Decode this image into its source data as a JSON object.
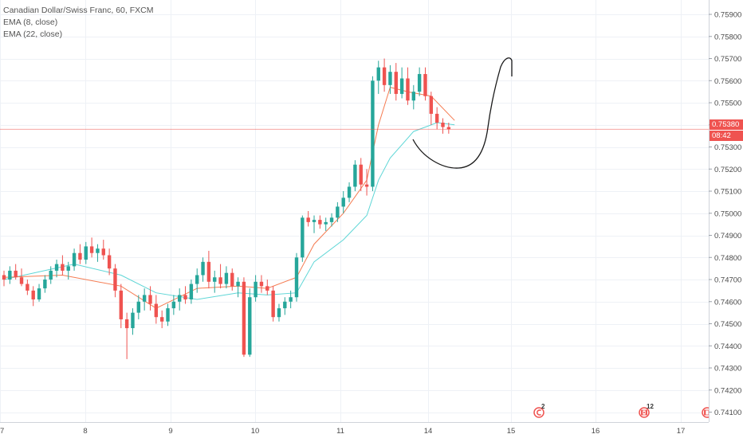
{
  "legend": {
    "symbol": "Canadian Dollar/Swiss Franc, 60, FXCM",
    "ema8": "EMA (8, close)",
    "ema22": "EMA (22, close)"
  },
  "price_tags": {
    "last_price": "0.75380",
    "countdown": "08:42"
  },
  "events": [
    {
      "label": "2",
      "icon": "news-event-icon"
    },
    {
      "label": "12",
      "icon": "canada-flag-event-icon"
    },
    {
      "label": "",
      "icon": "canada-flag-event-icon"
    }
  ],
  "colors": {
    "up": "#26a69a",
    "down": "#ef5350",
    "ema8": "#f57c52",
    "ema22": "#5ed6d6",
    "price_line": "#ef5350",
    "grid": "#eef1f6",
    "drawing": "#1a1a1a"
  },
  "chart_data": {
    "type": "candlestick",
    "title": "Canadian Dollar/Swiss Franc, 60, FXCM",
    "x_ticks": [
      "7",
      "8",
      "9",
      "10",
      "11",
      "14",
      "15",
      "16",
      "17"
    ],
    "y_ticks": [
      0.759,
      0.758,
      0.757,
      0.756,
      0.755,
      0.754,
      0.753,
      0.752,
      0.751,
      0.75,
      0.749,
      0.748,
      0.747,
      0.746,
      0.745,
      0.744,
      0.743,
      0.742,
      0.741
    ],
    "y_tick_labels": [
      "0.75900",
      "0.75800",
      "0.75700",
      "0.75600",
      "0.75500",
      "0.75400",
      "0.75300",
      "0.75200",
      "0.75100",
      "0.75000",
      "0.74900",
      "0.74800",
      "0.74700",
      "0.74600",
      "0.74500",
      "0.74400",
      "0.74300",
      "0.74200",
      "0.74100"
    ],
    "ylim": [
      0.74055,
      0.75965
    ],
    "last_price": 0.7538,
    "candles_by_period": [
      [
        0.7472,
        0.7474,
        0.7467,
        0.747
      ],
      [
        0.747,
        0.7476,
        0.7468,
        0.7474
      ],
      [
        0.7474,
        0.7477,
        0.747,
        0.7471
      ],
      [
        0.7471,
        0.7475,
        0.7467,
        0.7468
      ],
      [
        0.7468,
        0.747,
        0.7463,
        0.7465
      ],
      [
        0.7465,
        0.7467,
        0.7458,
        0.7461
      ],
      [
        0.7461,
        0.7468,
        0.746,
        0.7466
      ],
      [
        0.7466,
        0.7472,
        0.7464,
        0.747
      ],
      [
        0.747,
        0.7476,
        0.7468,
        0.7474
      ],
      [
        0.7474,
        0.7479,
        0.7471,
        0.7477
      ],
      [
        0.7477,
        0.7481,
        0.7472,
        0.7474
      ],
      [
        0.7474,
        0.7478,
        0.747,
        0.7476
      ],
      [
        0.7476,
        0.7484,
        0.7474,
        0.7482
      ],
      [
        0.7482,
        0.7486,
        0.7477,
        0.7479
      ],
      [
        0.7479,
        0.7487,
        0.7477,
        0.7485
      ],
      [
        0.7485,
        0.7489,
        0.748,
        0.7482
      ],
      [
        0.7482,
        0.7486,
        0.7478,
        0.7484
      ],
      [
        0.7484,
        0.7488,
        0.7479,
        0.7481
      ],
      [
        0.7481,
        0.7484,
        0.7472,
        0.7475
      ],
      [
        0.7475,
        0.7477,
        0.7462,
        0.7465
      ],
      [
        0.7465,
        0.7468,
        0.7448,
        0.7452
      ],
      [
        0.7452,
        0.7455,
        0.7434,
        0.7448
      ],
      [
        0.7448,
        0.7457,
        0.7445,
        0.7455
      ],
      [
        0.7455,
        0.7463,
        0.7452,
        0.746
      ],
      [
        0.746,
        0.7466,
        0.7456,
        0.7463
      ],
      [
        0.7463,
        0.7467,
        0.7456,
        0.7459
      ],
      [
        0.7459,
        0.7463,
        0.745,
        0.7453
      ],
      [
        0.7453,
        0.7456,
        0.7448,
        0.7451
      ],
      [
        0.7451,
        0.7459,
        0.7449,
        0.7457
      ],
      [
        0.7457,
        0.7463,
        0.7454,
        0.746
      ],
      [
        0.746,
        0.7466,
        0.7456,
        0.7463
      ],
      [
        0.7463,
        0.7467,
        0.7459,
        0.7461
      ],
      [
        0.7461,
        0.747,
        0.7459,
        0.7468
      ],
      [
        0.7468,
        0.7475,
        0.7464,
        0.7472
      ],
      [
        0.7472,
        0.748,
        0.7469,
        0.7478
      ],
      [
        0.7478,
        0.7483,
        0.7466,
        0.7469
      ],
      [
        0.7469,
        0.7474,
        0.7464,
        0.7471
      ],
      [
        0.7471,
        0.7477,
        0.7466,
        0.7468
      ],
      [
        0.7468,
        0.7476,
        0.7466,
        0.7473
      ],
      [
        0.7473,
        0.7475,
        0.7465,
        0.7467
      ],
      [
        0.7467,
        0.7471,
        0.7462,
        0.7469
      ],
      [
        0.7469,
        0.7471,
        0.7435,
        0.7436
      ],
      [
        0.7436,
        0.7466,
        0.7435,
        0.7462
      ],
      [
        0.7462,
        0.7472,
        0.746,
        0.7469
      ],
      [
        0.7469,
        0.7472,
        0.7464,
        0.7467
      ],
      [
        0.7467,
        0.747,
        0.7463,
        0.7465
      ],
      [
        0.7465,
        0.7467,
        0.7451,
        0.7453
      ],
      [
        0.7453,
        0.7459,
        0.7451,
        0.7457
      ],
      [
        0.7457,
        0.7462,
        0.7454,
        0.746
      ],
      [
        0.746,
        0.7465,
        0.7457,
        0.7462
      ],
      [
        0.7462,
        0.7482,
        0.746,
        0.748
      ],
      [
        0.748,
        0.7499,
        0.7478,
        0.7498
      ],
      [
        0.7498,
        0.7501,
        0.7494,
        0.7496
      ],
      [
        0.7496,
        0.7499,
        0.7491,
        0.7497
      ],
      [
        0.7497,
        0.7499,
        0.7493,
        0.7495
      ],
      [
        0.7495,
        0.7498,
        0.7492,
        0.7496
      ],
      [
        0.7496,
        0.75,
        0.7494,
        0.7498
      ],
      [
        0.7498,
        0.7505,
        0.7496,
        0.7503
      ],
      [
        0.7503,
        0.751,
        0.75,
        0.7507
      ],
      [
        0.7507,
        0.7514,
        0.7505,
        0.7512
      ],
      [
        0.7512,
        0.7524,
        0.751,
        0.7522
      ],
      [
        0.7522,
        0.7525,
        0.751,
        0.7513
      ],
      [
        0.7513,
        0.752,
        0.7508,
        0.7512
      ],
      [
        0.7512,
        0.7562,
        0.751,
        0.756
      ],
      [
        0.756,
        0.7569,
        0.7554,
        0.7566
      ],
      [
        0.7566,
        0.757,
        0.7555,
        0.7558
      ],
      [
        0.7558,
        0.7567,
        0.7554,
        0.7564
      ],
      [
        0.7564,
        0.7568,
        0.7551,
        0.7554
      ],
      [
        0.7554,
        0.7566,
        0.7552,
        0.7561
      ],
      [
        0.7561,
        0.7566,
        0.7549,
        0.7551
      ],
      [
        0.7551,
        0.7558,
        0.7547,
        0.7555
      ],
      [
        0.7555,
        0.7566,
        0.7553,
        0.7563
      ],
      [
        0.7563,
        0.7566,
        0.7551,
        0.7553
      ],
      [
        0.7553,
        0.7555,
        0.754,
        0.7545
      ],
      [
        0.7545,
        0.7548,
        0.7538,
        0.7541
      ],
      [
        0.7541,
        0.7543,
        0.7536,
        0.7539
      ],
      [
        0.7539,
        0.7541,
        0.7536,
        0.7538
      ]
    ],
    "ema8": [
      [
        0,
        0.7471
      ],
      [
        10,
        0.7472
      ],
      [
        20,
        0.7467
      ],
      [
        26,
        0.7457
      ],
      [
        33,
        0.7466
      ],
      [
        40,
        0.7467
      ],
      [
        45,
        0.7466
      ],
      [
        50,
        0.7471
      ],
      [
        53,
        0.7486
      ],
      [
        58,
        0.75
      ],
      [
        62,
        0.7515
      ],
      [
        64,
        0.754
      ],
      [
        66,
        0.7557
      ],
      [
        69,
        0.7555
      ],
      [
        73,
        0.7553
      ],
      [
        77,
        0.7542
      ]
    ],
    "ema22": [
      [
        0,
        0.747
      ],
      [
        12,
        0.7477
      ],
      [
        20,
        0.7472
      ],
      [
        26,
        0.7464
      ],
      [
        33,
        0.7461
      ],
      [
        40,
        0.7464
      ],
      [
        45,
        0.7463
      ],
      [
        50,
        0.7464
      ],
      [
        53,
        0.7478
      ],
      [
        58,
        0.7488
      ],
      [
        62,
        0.7499
      ],
      [
        64,
        0.7515
      ],
      [
        66,
        0.7525
      ],
      [
        70,
        0.7537
      ],
      [
        74,
        0.7541
      ],
      [
        77,
        0.754
      ]
    ]
  }
}
